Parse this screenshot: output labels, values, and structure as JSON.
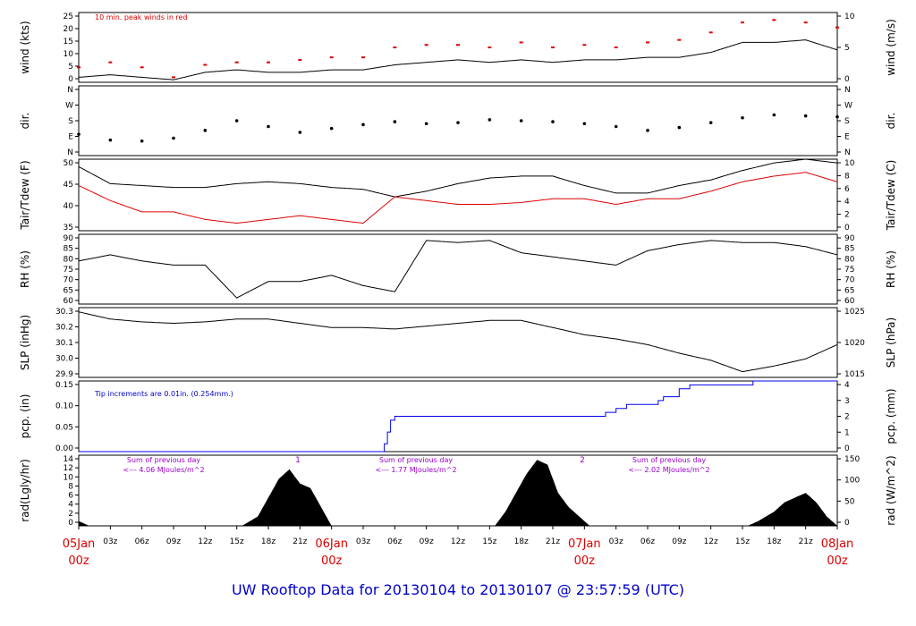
{
  "colors": {
    "axis": "#000000",
    "temp": "#000000",
    "dew": "#dd0000",
    "peak": "#dd0000",
    "precip": "#0000ee",
    "note": "#0000cc",
    "solar_note": "#9900cc",
    "date_labels": "#dd0000",
    "footer": "#0000cc"
  },
  "footer": {
    "title": "UW Rooftop Data for 20130104  to  20130107 @ 23:57:59  (UTC)"
  },
  "time_axis": {
    "tick_labels": [
      "03z",
      "06z",
      "09z",
      "12z",
      "15z",
      "18z",
      "21z",
      "03z",
      "06z",
      "09z",
      "12z",
      "15z",
      "18z",
      "21z",
      "03z",
      "06z",
      "09z",
      "12z",
      "15z",
      "18z",
      "21z"
    ],
    "dates": [
      {
        "day": "05Jan",
        "hour": "00z"
      },
      {
        "day": "06Jan",
        "hour": "00z"
      },
      {
        "day": "07Jan",
        "hour": "00z"
      },
      {
        "day": "08Jan",
        "hour": "00z"
      }
    ]
  },
  "chart_data": [
    {
      "type": "line",
      "name": "wind",
      "ylabel_left": "wind (kts)",
      "ylabel_right": "wind (m/s)",
      "yticks_left": [
        "0",
        "5",
        "10",
        "15",
        "20",
        "25"
      ],
      "yticks_right": [
        "0",
        "5",
        "10"
      ],
      "ylim": [
        0,
        28
      ],
      "annotation": "10 min. peak winds in red",
      "x_hours": [
        0,
        3,
        6,
        9,
        12,
        15,
        18,
        21,
        24,
        27,
        30,
        33,
        36,
        39,
        42,
        45,
        48,
        51,
        54,
        57,
        60,
        63,
        66,
        69,
        72
      ],
      "series": [
        {
          "values": [
            2,
            3,
            2,
            1,
            4,
            5,
            4,
            4,
            5,
            5,
            7,
            8,
            9,
            8,
            9,
            8,
            9,
            9,
            10,
            10,
            12,
            16,
            16,
            17,
            13
          ]
        },
        {
          "values": [
            6,
            8,
            6,
            2,
            7,
            8,
            8,
            9,
            10,
            10,
            14,
            15,
            15,
            14,
            16,
            14,
            15,
            14,
            16,
            17,
            20,
            24,
            25,
            24,
            22
          ]
        }
      ]
    },
    {
      "type": "scatter",
      "name": "dir",
      "ylabel_left": "dir.",
      "ylabel_right": "dir.",
      "yticks_left": [
        "N",
        "E",
        "S",
        "W",
        "N"
      ],
      "yticks_right": [
        "N",
        "E",
        "S",
        "W",
        "N"
      ],
      "ylim": [
        0,
        360
      ],
      "x_hours": [
        0,
        3,
        6,
        9,
        12,
        15,
        18,
        21,
        24,
        27,
        30,
        33,
        36,
        39,
        42,
        45,
        48,
        51,
        54,
        57,
        60,
        63,
        66,
        69,
        72
      ],
      "values": [
        110,
        80,
        75,
        90,
        130,
        180,
        150,
        120,
        140,
        160,
        175,
        165,
        170,
        185,
        180,
        175,
        165,
        150,
        130,
        145,
        170,
        195,
        210,
        205,
        200
      ]
    },
    {
      "type": "line",
      "name": "temp",
      "ylabel_left": "Tair/Tdew (F)",
      "ylabel_right": "Tair/Tdew (C)",
      "yticks_left": [
        "35",
        "40",
        "45",
        "50"
      ],
      "yticks_right": [
        "0",
        "2",
        "4",
        "6",
        "8",
        "10"
      ],
      "ylim": [
        32,
        51
      ],
      "x_hours": [
        0,
        3,
        6,
        9,
        12,
        15,
        18,
        21,
        24,
        27,
        30,
        33,
        36,
        39,
        42,
        45,
        48,
        51,
        54,
        57,
        60,
        63,
        66,
        69,
        72
      ],
      "series": [
        {
          "values": [
            49,
            44.5,
            44,
            43.5,
            43.5,
            44.5,
            45,
            44.5,
            43.5,
            43,
            41,
            42.5,
            44.5,
            46,
            46.5,
            46.5,
            44,
            42,
            42,
            44,
            45.5,
            48,
            50,
            51,
            50
          ]
        },
        {
          "values": [
            44,
            40,
            37,
            37,
            35,
            34,
            35,
            36,
            35,
            34,
            41,
            40,
            39,
            39,
            39.5,
            40.5,
            40.5,
            39,
            40.5,
            40.5,
            42.5,
            45,
            46.5,
            47.5,
            45
          ]
        }
      ]
    },
    {
      "type": "line",
      "name": "rh",
      "ylabel_left": "RH (%)",
      "ylabel_right": "RH (%)",
      "yticks_left": [
        "60",
        "65",
        "70",
        "75",
        "80",
        "85",
        "90"
      ],
      "yticks_right": [
        "60",
        "65",
        "70",
        "75",
        "80",
        "85",
        "90"
      ],
      "ylim": [
        59,
        93
      ],
      "x_hours": [
        0,
        3,
        6,
        9,
        12,
        15,
        18,
        21,
        24,
        27,
        30,
        33,
        36,
        39,
        42,
        45,
        48,
        51,
        54,
        57,
        60,
        63,
        66,
        69,
        72
      ],
      "values": [
        80,
        83,
        80,
        78,
        78,
        62,
        70,
        70,
        73,
        68,
        65,
        90,
        89,
        90,
        84,
        82,
        80,
        78,
        85,
        88,
        90,
        89,
        89,
        87,
        83
      ]
    },
    {
      "type": "line",
      "name": "slp",
      "ylabel_left": "SLP (inHg)",
      "ylabel_right": "SLP (hPa)",
      "yticks_left": [
        "29.9",
        "30.0",
        "30.1",
        "30.2",
        "30.3"
      ],
      "yticks_right": [
        "1015",
        "1020",
        "1025"
      ],
      "ylim": [
        29.84,
        30.33
      ],
      "x_hours": [
        0,
        3,
        6,
        9,
        12,
        15,
        18,
        21,
        24,
        27,
        30,
        33,
        36,
        39,
        42,
        45,
        48,
        51,
        54,
        57,
        60,
        63,
        66,
        69,
        72
      ],
      "values": [
        30.3,
        30.25,
        30.23,
        30.22,
        30.23,
        30.25,
        30.25,
        30.22,
        30.19,
        30.19,
        30.18,
        30.2,
        30.22,
        30.24,
        30.24,
        30.19,
        30.14,
        30.11,
        30.07,
        30.01,
        29.96,
        29.88,
        29.92,
        29.97,
        30.07
      ]
    },
    {
      "type": "area",
      "name": "pcp",
      "ylabel_left": "pcp. (in)",
      "ylabel_right": "pcp. (mm)",
      "yticks_left": [
        "0.00",
        "0.05",
        "0.10",
        "0.15"
      ],
      "yticks_right": [
        "0",
        "1",
        "2",
        "3",
        "4"
      ],
      "ylim": [
        0,
        0.18
      ],
      "annotation": "Tip increments are 0.01in. (0.254mm.)",
      "x_hours": [
        0,
        28.5,
        29,
        29.3,
        29.6,
        30,
        48,
        50,
        51,
        52,
        55,
        55.5,
        57,
        58,
        63,
        64,
        72
      ],
      "values": [
        0,
        0,
        0.02,
        0.05,
        0.08,
        0.09,
        0.09,
        0.1,
        0.11,
        0.12,
        0.13,
        0.14,
        0.16,
        0.17,
        0.17,
        0.18,
        0.18
      ]
    },
    {
      "type": "area",
      "name": "rad",
      "ylabel_left": "rad(Lgly/hr)",
      "ylabel_right": "rad (W/m^2)",
      "yticks_left": [
        "0",
        "2",
        "4",
        "6",
        "8",
        "10",
        "12",
        "14"
      ],
      "yticks_right": [
        "0",
        "50",
        "100",
        "150"
      ],
      "ylim": [
        0,
        15
      ],
      "annotations": [
        {
          "line1": "Sum of previous day",
          "line2": "<--- 4.06 MJoules/m^2",
          "marker": "1"
        },
        {
          "line1": "Sum of previous day",
          "line2": "<--- 1.77 MJoules/m^2",
          "marker": "2"
        },
        {
          "line1": "Sum of previous day",
          "line2": "<--- 2.02 MJoules/m^2"
        }
      ],
      "x_hours": [
        0,
        0.5,
        1,
        15.5,
        17,
        18,
        19,
        20,
        21,
        22,
        23,
        24,
        39.5,
        40.5,
        41.5,
        42.5,
        43.5,
        44.5,
        45.5,
        46.5,
        47.5,
        48.5,
        63.5,
        64.5,
        66,
        67,
        68,
        69,
        70,
        71,
        72
      ],
      "values": [
        1,
        0.5,
        0,
        0,
        2,
        6,
        10,
        12,
        9,
        8,
        4,
        0,
        0,
        3,
        7,
        11,
        14,
        13,
        7,
        4,
        2,
        0,
        0,
        1,
        3,
        5,
        6,
        7,
        5,
        2,
        0
      ]
    }
  ]
}
